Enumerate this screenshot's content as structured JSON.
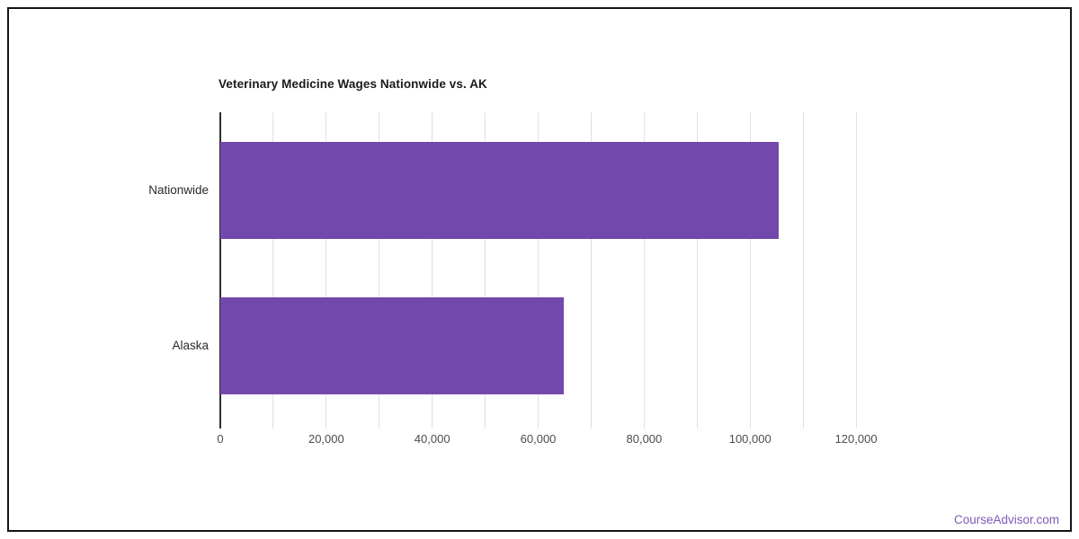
{
  "chart_data": {
    "type": "bar",
    "orientation": "horizontal",
    "title": "Veterinary Medicine Wages Nationwide vs. AK",
    "categories": [
      "Nationwide",
      "Alaska"
    ],
    "values": [
      105400,
      64800
    ],
    "xlabel": "",
    "ylabel": "",
    "xlim": [
      0,
      130000
    ],
    "x_ticks": [
      0,
      20000,
      40000,
      60000,
      80000,
      100000,
      120000
    ],
    "x_tick_labels": [
      "0",
      "20,000",
      "40,000",
      "60,000",
      "80,000",
      "100,000",
      "120,000"
    ],
    "minor_gridline_step": 10000,
    "grid": true,
    "legend": "none",
    "bar_color": "#7248ac",
    "gridline_color": "#e0e0e0",
    "axis_line_color": "#2e2e2e"
  },
  "watermark": {
    "text": "CourseAdvisor.com",
    "color": "#7b5cb8"
  }
}
